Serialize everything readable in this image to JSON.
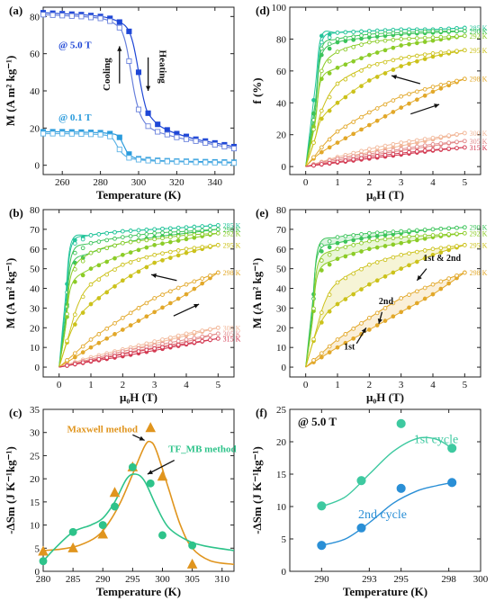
{
  "colors": {
    "heating": "#1f47d6",
    "cooling": "#6a82dc",
    "low_field_heating": "#2a9bdc",
    "low_field_cooling": "#5fb4e6",
    "maxwell": "#e0951e",
    "tfmb": "#2ec38a",
    "cycle1": "#3ec9a0",
    "cycle2": "#2a8fd6",
    "temp_285": "#23c49a",
    "temp_290": "#3cc45a",
    "temp_292": "#8ccc28",
    "temp_295": "#ccc21c",
    "temp_298": "#e2a82a",
    "temp_300": "#f2b89a",
    "temp_305": "#e48c8c",
    "temp_315": "#d33a52"
  },
  "chart_data": [
    {
      "panel": "(a)",
      "type": "line",
      "xlabel": "Temperature (K)",
      "ylabel": "M (A m² kg⁻¹)",
      "xlim": [
        250,
        350
      ],
      "ylim": [
        -5,
        85
      ],
      "xticks": [
        260,
        280,
        300,
        320,
        340
      ],
      "yticks": [
        0,
        20,
        40,
        60,
        80
      ],
      "annotations": [
        "@ 5.0 T",
        "@ 0.1 T",
        "Heating",
        "Cooling"
      ],
      "series": [
        {
          "field": "5.0 T",
          "mode": "heating",
          "x": [
            250,
            260,
            270,
            280,
            285,
            290,
            293,
            295,
            297,
            299,
            301,
            303,
            305,
            310,
            315,
            320,
            330,
            340,
            350
          ],
          "y": [
            82,
            81.5,
            81,
            80,
            79,
            77,
            75,
            72,
            66,
            56,
            44,
            34,
            28,
            22,
            19,
            17,
            14,
            12,
            10
          ]
        },
        {
          "field": "5.0 T",
          "mode": "cooling",
          "x": [
            250,
            260,
            270,
            280,
            285,
            290,
            292,
            294,
            296,
            298,
            300,
            302,
            305,
            310,
            320,
            330,
            340,
            350
          ],
          "y": [
            81,
            80.5,
            80,
            79,
            77.5,
            74,
            70,
            62,
            50,
            38,
            30,
            25,
            21,
            18,
            15,
            13,
            11,
            9
          ]
        },
        {
          "field": "0.1 T",
          "mode": "heating",
          "x": [
            250,
            260,
            270,
            280,
            285,
            288,
            290,
            292,
            294,
            296,
            298,
            300,
            305,
            310,
            320,
            330,
            340,
            350
          ],
          "y": [
            18,
            18,
            17.8,
            17.5,
            17,
            16.5,
            15,
            11,
            7,
            5,
            4,
            3.5,
            3,
            2.6,
            2.2,
            2,
            1.8,
            1.6
          ]
        },
        {
          "field": "0.1 T",
          "mode": "cooling",
          "x": [
            250,
            260,
            270,
            280,
            285,
            287,
            289,
            291,
            293,
            295,
            297,
            300,
            305,
            310,
            320,
            330,
            340,
            350
          ],
          "y": [
            17,
            17,
            16.8,
            16.5,
            15.5,
            13.5,
            10,
            7,
            5,
            4,
            3.4,
            3,
            2.5,
            2.2,
            1.9,
            1.6,
            1.4,
            1.2
          ]
        }
      ]
    },
    {
      "panel": "(d)",
      "type": "line",
      "xlabel": "μ₀H (T)",
      "ylabel": "f (%)",
      "xlim": [
        -0.5,
        5.5
      ],
      "ylim": [
        -5,
        100
      ],
      "xticks": [
        0,
        1,
        2,
        3,
        4,
        5
      ],
      "yticks": [
        0,
        20,
        40,
        60,
        80,
        100
      ],
      "temperatures": [
        "285 K",
        "290 K",
        "292 K",
        "295 K",
        "298 K",
        "300 K",
        "305 K",
        "315 K"
      ],
      "series": [
        {
          "name": "285 K",
          "x": [
            0,
            0.3,
            0.5,
            1,
            2,
            3,
            4,
            5
          ],
          "up": [
            0,
            50,
            82,
            84,
            85,
            86,
            86,
            87
          ],
          "down": [
            0,
            40,
            78,
            84,
            85,
            86,
            86,
            87
          ]
        },
        {
          "name": "290 K",
          "x": [
            0,
            0.3,
            0.5,
            1,
            2,
            3,
            4,
            5
          ],
          "up": [
            0,
            40,
            70,
            78,
            81,
            83,
            84,
            85
          ],
          "down": [
            0,
            35,
            74,
            80,
            83,
            84,
            85,
            85
          ]
        },
        {
          "name": "292 K",
          "x": [
            0,
            0.3,
            0.5,
            1,
            2,
            3,
            4,
            5
          ],
          "up": [
            0,
            30,
            55,
            62,
            70,
            76,
            79,
            82
          ],
          "down": [
            0,
            28,
            60,
            72,
            78,
            80,
            81,
            82
          ]
        },
        {
          "name": "295 K",
          "x": [
            0,
            0.3,
            0.5,
            1,
            2,
            3,
            4,
            5
          ],
          "up": [
            0,
            18,
            30,
            40,
            54,
            63,
            69,
            73
          ],
          "down": [
            0,
            18,
            35,
            52,
            63,
            68,
            71,
            73
          ]
        },
        {
          "name": "298 K",
          "x": [
            0,
            0.3,
            0.5,
            1,
            2,
            3,
            4,
            5
          ],
          "up": [
            0,
            6,
            9,
            15,
            26,
            37,
            47,
            55
          ],
          "down": [
            0,
            7,
            12,
            22,
            34,
            44,
            50,
            55
          ]
        },
        {
          "name": "300 K",
          "x": [
            0,
            1,
            2,
            3,
            4,
            5
          ],
          "up": [
            0,
            5,
            9,
            13,
            17,
            21
          ],
          "down": [
            0,
            6,
            11,
            15,
            18,
            21
          ]
        },
        {
          "name": "305 K",
          "x": [
            0,
            1,
            2,
            3,
            4,
            5
          ],
          "up": [
            0,
            4,
            7,
            10,
            13,
            16
          ],
          "down": [
            0,
            5,
            8,
            11,
            14,
            16
          ]
        },
        {
          "name": "315 K",
          "x": [
            0,
            1,
            2,
            3,
            4,
            5
          ],
          "up": [
            0,
            2.5,
            5,
            7.5,
            10,
            12
          ],
          "down": [
            0,
            3,
            6,
            8.5,
            10.5,
            12
          ]
        }
      ]
    },
    {
      "panel": "(b)",
      "type": "line",
      "xlabel": "μ₀H (T)",
      "ylabel": "M (A m² kg⁻¹)",
      "xlim": [
        -0.5,
        5.5
      ],
      "ylim": [
        -5,
        80
      ],
      "xticks": [
        0,
        1,
        2,
        3,
        4,
        5
      ],
      "yticks": [
        0,
        10,
        20,
        30,
        40,
        50,
        60,
        70,
        80
      ],
      "temperatures": [
        "285 K",
        "290 K",
        "292 K",
        "295 K",
        "298 K",
        "300 K",
        "305 K",
        "315 K"
      ],
      "series": [
        {
          "name": "285 K",
          "x": [
            0,
            0.2,
            0.4,
            1,
            2,
            3,
            4,
            5
          ],
          "up": [
            0,
            35,
            64,
            67,
            69,
            70,
            71,
            72
          ],
          "down": [
            0,
            30,
            62,
            67,
            69,
            70,
            71,
            72
          ]
        },
        {
          "name": "290 K",
          "x": [
            0,
            0.2,
            0.4,
            1,
            2,
            3,
            4,
            5
          ],
          "up": [
            0,
            25,
            52,
            58,
            63,
            66,
            68,
            70
          ],
          "down": [
            0,
            22,
            57,
            63,
            66,
            68,
            69,
            70
          ]
        },
        {
          "name": "292 K",
          "x": [
            0,
            0.2,
            0.4,
            1,
            2,
            3,
            4,
            5
          ],
          "up": [
            0,
            20,
            42,
            50,
            57,
            62,
            65,
            68
          ],
          "down": [
            0,
            20,
            48,
            58,
            63,
            65,
            67,
            68
          ]
        },
        {
          "name": "295 K",
          "x": [
            0,
            0.3,
            0.6,
            1,
            2,
            3,
            4,
            5
          ],
          "up": [
            0,
            15,
            25,
            32,
            44,
            53,
            58,
            62
          ],
          "down": [
            0,
            16,
            32,
            42,
            52,
            57,
            60,
            62
          ]
        },
        {
          "name": "298 K",
          "x": [
            0,
            0.5,
            1,
            2,
            3,
            4,
            5
          ],
          "up": [
            0,
            5,
            10,
            19,
            28,
            37,
            48
          ],
          "down": [
            0,
            7,
            14,
            25,
            35,
            42,
            48
          ]
        },
        {
          "name": "300 K",
          "x": [
            0,
            1,
            2,
            3,
            4,
            5
          ],
          "up": [
            0,
            4,
            8,
            12,
            16,
            20
          ],
          "down": [
            0,
            5,
            9,
            13,
            17,
            20
          ]
        },
        {
          "name": "305 K",
          "x": [
            0,
            1,
            2,
            3,
            4,
            5
          ],
          "up": [
            0,
            3.5,
            7,
            10,
            13,
            17
          ],
          "down": [
            0,
            4,
            8,
            11,
            14,
            17
          ]
        },
        {
          "name": "315 K",
          "x": [
            0,
            1,
            2,
            3,
            4,
            5
          ],
          "up": [
            0,
            2.8,
            5.5,
            8.5,
            11.5,
            14.5
          ],
          "down": [
            0,
            3.2,
            6.5,
            9.5,
            12,
            14.5
          ]
        }
      ]
    },
    {
      "panel": "(e)",
      "type": "line",
      "xlabel": "μ₀H (T)",
      "ylabel": "M (A m² kg⁻¹)",
      "xlim": [
        -0.5,
        5.5
      ],
      "ylim": [
        -5,
        80
      ],
      "xticks": [
        0,
        1,
        2,
        3,
        4,
        5
      ],
      "yticks": [
        0,
        10,
        20,
        30,
        40,
        50,
        60,
        70,
        80
      ],
      "annotations": [
        "1st & 2nd",
        "1st",
        "2nd"
      ],
      "temperatures": [
        "290 K",
        "292 K",
        "295 K",
        "298 K"
      ],
      "series": [
        {
          "name": "290 K",
          "x": [
            0,
            0.2,
            0.4,
            1,
            2,
            3,
            4,
            5
          ],
          "up": [
            0,
            30,
            58,
            63,
            66,
            68,
            70,
            71
          ],
          "down": [
            0,
            26,
            61,
            66,
            68,
            69,
            70,
            71
          ]
        },
        {
          "name": "292 K",
          "x": [
            0,
            0.2,
            0.4,
            1,
            2,
            3,
            4,
            5
          ],
          "up": [
            0,
            22,
            48,
            55,
            60,
            63,
            66,
            68
          ],
          "down": [
            0,
            22,
            53,
            60,
            64,
            66,
            67,
            68
          ]
        },
        {
          "name": "295 K",
          "x": [
            0,
            0.3,
            0.6,
            1,
            2,
            3,
            4,
            5
          ],
          "up": [
            0,
            16,
            26,
            32,
            42,
            50,
            57,
            62
          ],
          "down": [
            0,
            17,
            33,
            43,
            52,
            57,
            60,
            62
          ]
        },
        {
          "name": "298 K",
          "x": [
            0,
            0.5,
            1,
            2,
            3,
            4,
            5
          ],
          "up": [
            0,
            5,
            10,
            19,
            28,
            37,
            48
          ],
          "down": [
            0,
            7,
            14,
            25,
            35,
            42,
            48
          ]
        }
      ]
    },
    {
      "panel": "(c)",
      "type": "scatter",
      "xlabel": "Temperature (K)",
      "ylabel": "-ΔSm (J K⁻¹kg⁻¹)",
      "xlim": [
        280,
        312
      ],
      "ylim": [
        0,
        35
      ],
      "xticks": [
        280,
        285,
        290,
        295,
        300,
        305,
        310
      ],
      "yticks": [
        0,
        5,
        10,
        15,
        20,
        25,
        30,
        35
      ],
      "series": [
        {
          "name": "Maxwell method",
          "x": [
            280,
            285,
            290,
            292,
            295,
            298,
            300,
            305
          ],
          "y": [
            4.3,
            5,
            8,
            17,
            22.5,
            31,
            20.5,
            1.5
          ]
        },
        {
          "name": "TF_MB method",
          "x": [
            280,
            285,
            290,
            292,
            295,
            298,
            300,
            305
          ],
          "y": [
            2.2,
            8.5,
            10,
            14,
            22.5,
            19,
            7.8,
            5.6
          ]
        }
      ]
    },
    {
      "panel": "(f)",
      "type": "scatter",
      "xlabel": "Temperature (K)",
      "ylabel": "-ΔSm (J K⁻¹kg⁻¹)",
      "xlim": [
        288,
        300
      ],
      "ylim": [
        0,
        25
      ],
      "xticks": [
        290,
        293,
        295,
        298,
        300
      ],
      "yticks": [
        0,
        5,
        10,
        15,
        20,
        25
      ],
      "title": "@ 5.0 T",
      "series": [
        {
          "name": "1st cycle",
          "x": [
            290,
            292.5,
            295,
            298.2
          ],
          "y": [
            10.1,
            14,
            22.8,
            19
          ]
        },
        {
          "name": "2nd cycle",
          "x": [
            290,
            292.5,
            295,
            298.2
          ],
          "y": [
            4,
            6.7,
            12.8,
            13.7
          ]
        }
      ]
    }
  ]
}
